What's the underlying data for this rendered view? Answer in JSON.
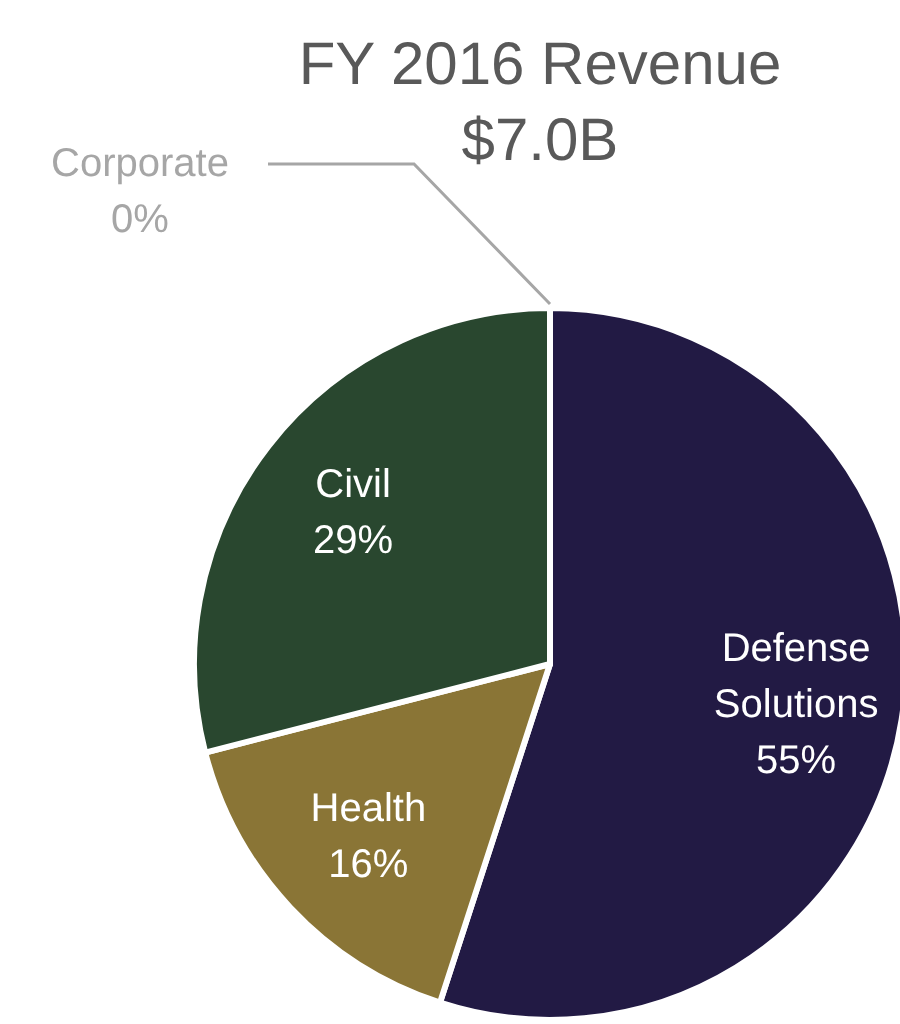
{
  "chart_data": {
    "type": "pie",
    "title": "FY 2016 Revenue",
    "subtitle": "$7.0B",
    "categories": [
      "Defense Solutions",
      "Health",
      "Civil",
      "Corporate"
    ],
    "values": [
      55,
      16,
      29,
      0
    ],
    "colors": [
      "#221a44",
      "#8a7536",
      "#29472f",
      "#a6a6a6"
    ],
    "value_labels": [
      "55%",
      "16%",
      "29%",
      "0%"
    ]
  }
}
